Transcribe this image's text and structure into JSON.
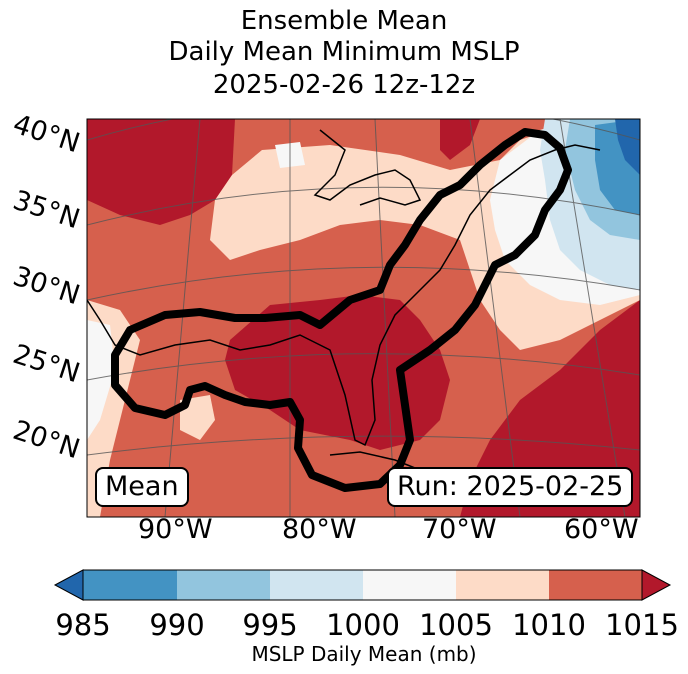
{
  "title": {
    "line1": "Ensemble Mean",
    "line2": "Daily Mean Minimum MSLP",
    "line3": "2025-02-26 12z-12z"
  },
  "map": {
    "lat_labels": [
      "40°N",
      "35°N",
      "30°N",
      "25°N",
      "20°N"
    ],
    "lon_labels": [
      "90°W",
      "80°W",
      "70°W",
      "60°W"
    ],
    "mean_label": "Mean",
    "run_label": "Run: 2025-02-25",
    "outline_color": "#000000"
  },
  "colorbar": {
    "label": "MSLP Daily Mean (mb)",
    "ticks": [
      "985",
      "990",
      "995",
      "1000",
      "1005",
      "1010",
      "1015"
    ],
    "colors": [
      "#2166ac",
      "#4393c3",
      "#92c5de",
      "#d1e5f0",
      "#f7f7f7",
      "#fddbc7",
      "#d6604d",
      "#b2182b"
    ]
  }
}
